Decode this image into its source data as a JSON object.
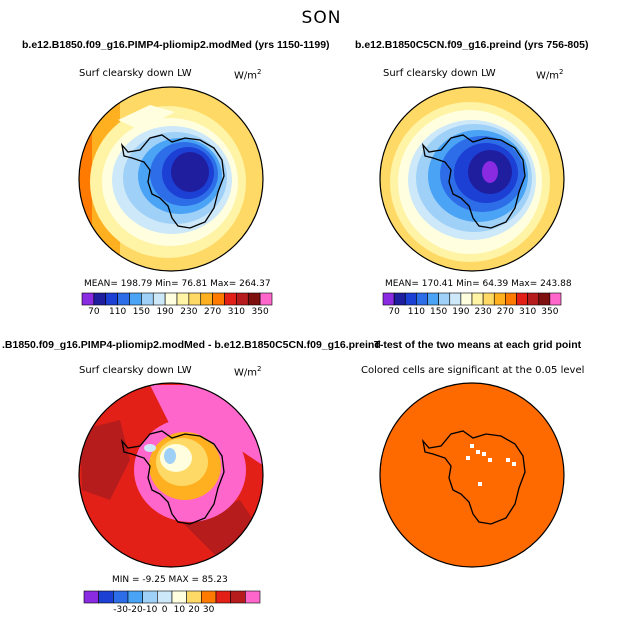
{
  "season": "SON",
  "colors": {
    "abs_scale": [
      "#8a2be2",
      "#1e1e9e",
      "#1c3fd4",
      "#2d6ee8",
      "#4aa3f5",
      "#9fd0f7",
      "#cde8f8",
      "#ffffe0",
      "#fff3a6",
      "#ffd966",
      "#ffb020",
      "#ff7a00",
      "#e32017",
      "#b71c1c",
      "#7f1010",
      "#ff66cc"
    ],
    "diff_scale": [
      "#8a2be2",
      "#1c3fd4",
      "#2d6ee8",
      "#4aa3f5",
      "#9fd0f7",
      "#cde8f8",
      "#ffffe0",
      "#ffd966",
      "#ff7a00",
      "#e32017",
      "#b71c1c",
      "#ff66cc"
    ],
    "sig_fill": "#ff6a00"
  },
  "chart_data": [
    {
      "type": "heatmap",
      "title": "b.e12.B1850.f09_g16.PIMP4-pliomip2.modMed (yrs 1150-1199)",
      "variable": "Surf clearsky down LW",
      "units": "W/m",
      "units_sup": "2",
      "stats": "MEAN= 198.79   Min= 76.81   Max= 264.37",
      "colorbar_ticks": [
        "70",
        "110",
        "150",
        "190",
        "230",
        "270",
        "310",
        "350"
      ]
    },
    {
      "type": "heatmap",
      "title": "b.e12.B1850C5CN.f09_g16.preind (yrs 756-805)",
      "variable": "Surf clearsky down LW",
      "units": "W/m",
      "units_sup": "2",
      "stats": "MEAN= 170.41   Min= 64.39   Max= 243.88",
      "colorbar_ticks": [
        "70",
        "110",
        "150",
        "190",
        "230",
        "270",
        "310",
        "350"
      ]
    },
    {
      "type": "heatmap",
      "title": ".B1850.f09_g16.PIMP4-pliomip2.modMed - b.e12.B1850C5CN.f09_g16.preind",
      "variable": "Surf clearsky down LW",
      "units": "W/m",
      "units_sup": "2",
      "stats": "MIN =  -9.25 MAX =  85.23",
      "colorbar_ticks": [
        "-30",
        "-20",
        "-10",
        "0",
        "10",
        "20",
        "30"
      ]
    },
    {
      "type": "heatmap",
      "title": "T-test of the two means at each grid point",
      "subtitle": "Colored cells are significant at the 0.05 level"
    }
  ]
}
